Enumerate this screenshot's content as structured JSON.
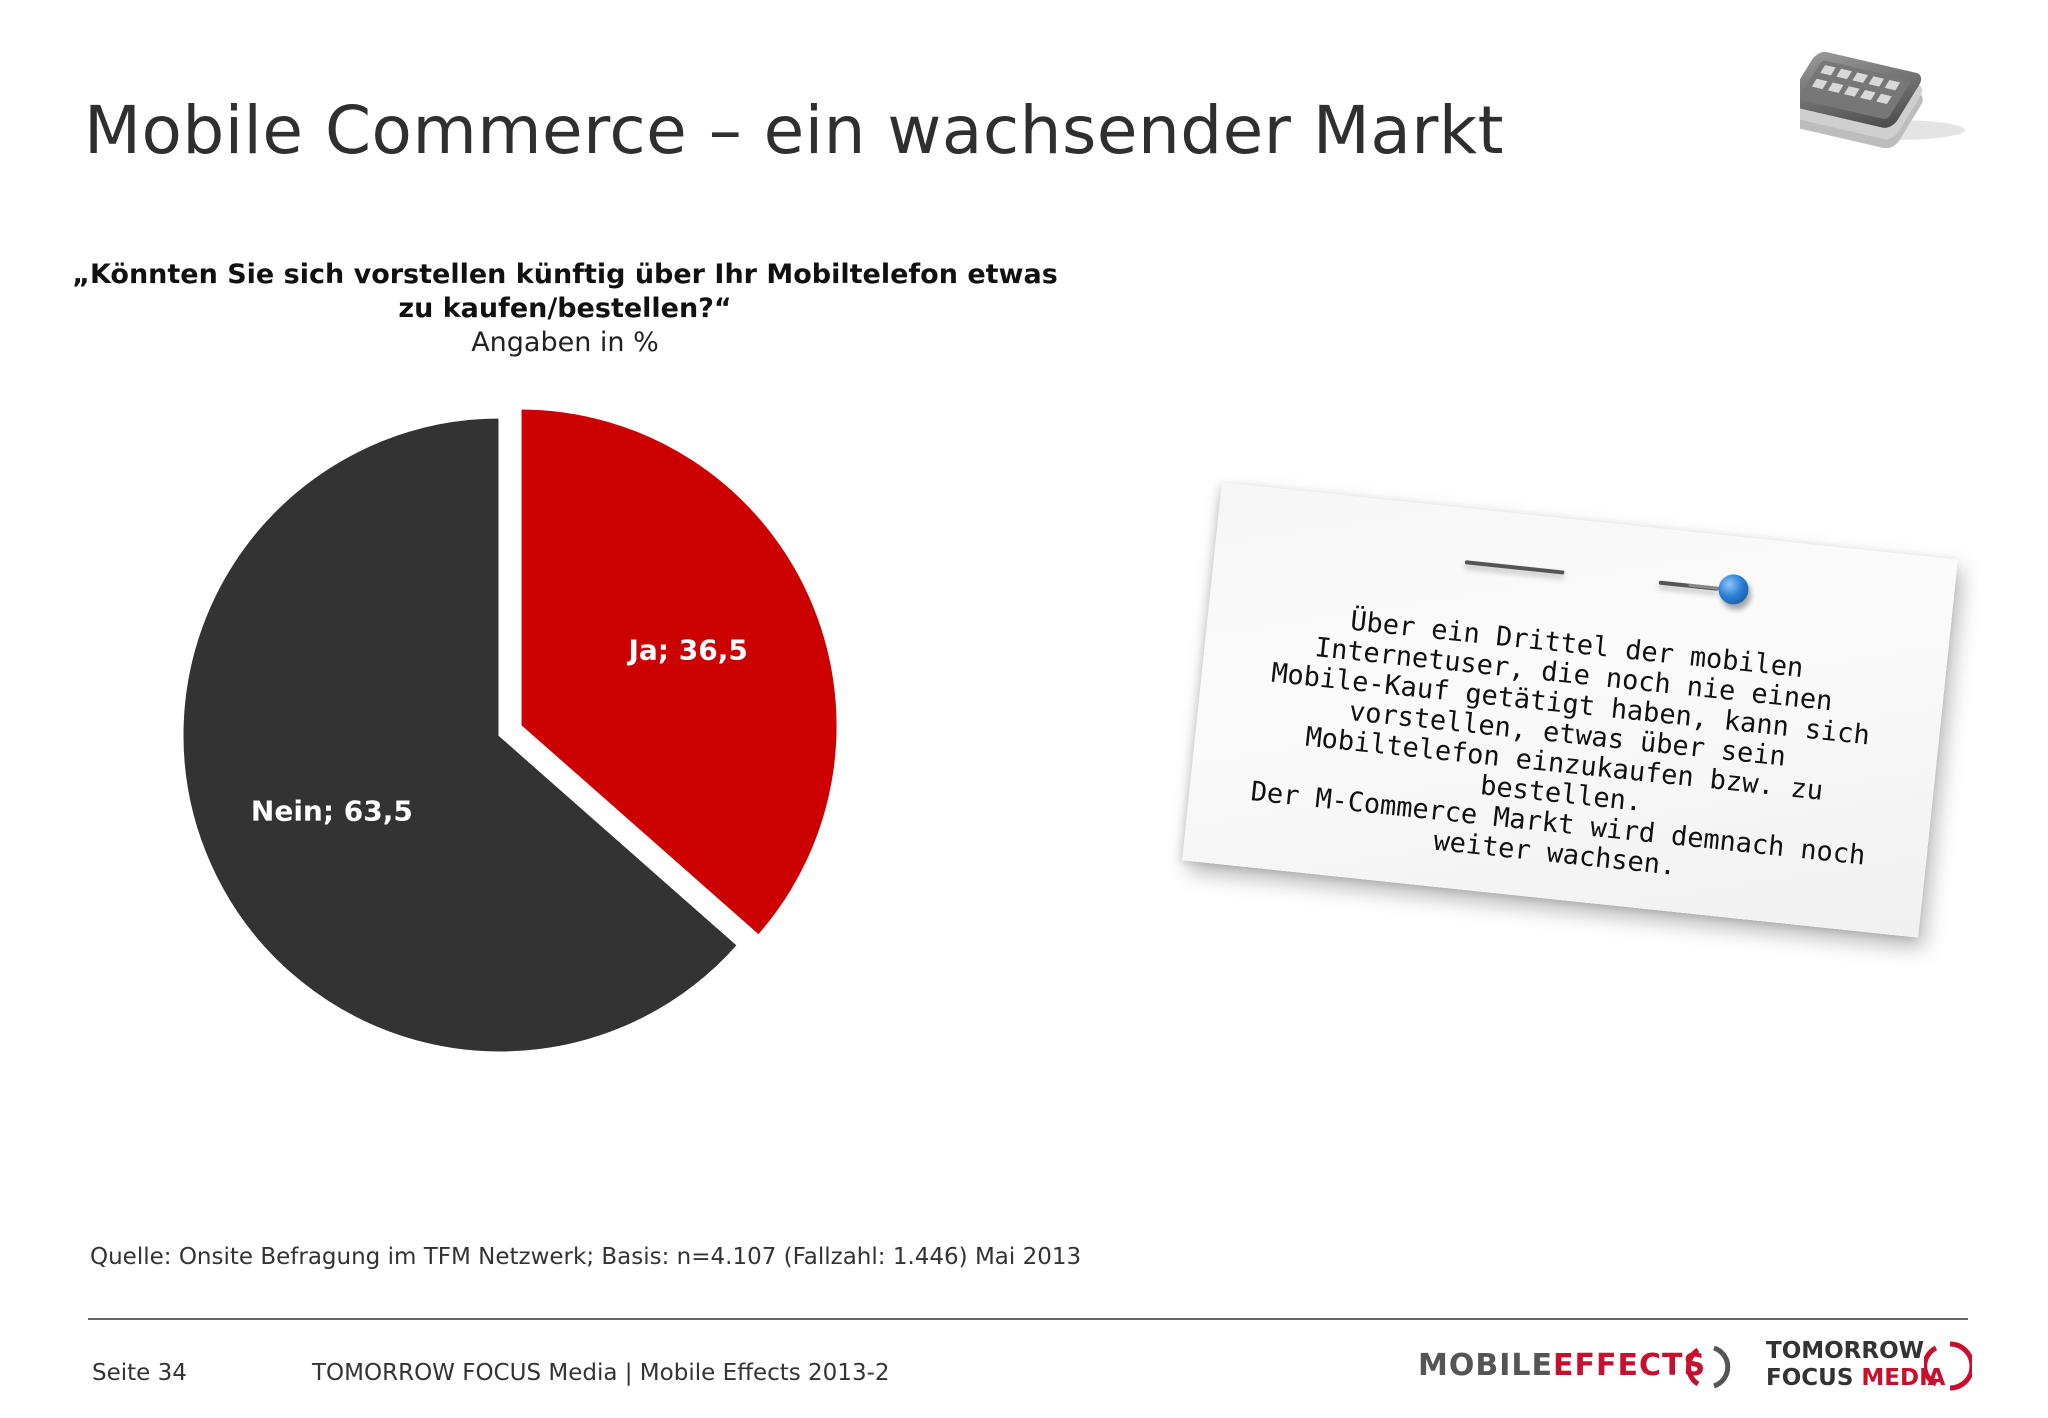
{
  "title": "Mobile Commerce – ein wachsender Markt",
  "chart_data": {
    "type": "pie",
    "title": "„Könnten Sie sich vorstellen künftig über Ihr Mobiltelefon etwas zu kaufen/bestellen?“",
    "subtitle": "Angaben in %",
    "question_line1": "„Könnten Sie sich vorstellen künftig über Ihr Mobiltelefon etwas",
    "question_line2": "zu kaufen/bestellen?“",
    "slices": [
      {
        "label": "Ja",
        "value": 36.5,
        "display": "Ja; 36,5",
        "color": "#cc0000",
        "exploded": true
      },
      {
        "label": "Nein",
        "value": 63.5,
        "display": "Nein; 63,5",
        "color": "#333333",
        "exploded": false
      }
    ]
  },
  "note": {
    "paragraph1": "Über ein Drittel der mobilen Internetuser, die noch nie einen Mobile-Kauf getätigt haben, kann sich vorstellen, etwas über sein Mobiltelefon einzukaufen bzw. zu bestellen.",
    "paragraph2": "Der M-Commerce Markt wird demnach noch weiter wachsen."
  },
  "source": "Quelle: Onsite Befragung im TFM Netzwerk; Basis: n=4.107 (Fallzahl: 1.446) Mai 2013",
  "footer": {
    "page": "Seite 34",
    "text": "TOMORROW FOCUS Media | Mobile Effects 2013-2"
  },
  "logos": {
    "mobile_effects_part1": "MOBILE",
    "mobile_effects_part2": "EFFECTS",
    "tfm_line1": "TOMORROW",
    "tfm_line2a": "FOCUS",
    "tfm_line2b": "MEDIA"
  },
  "icons": {
    "header": "smartphone-icon"
  },
  "colors": {
    "accent": "#cc0000",
    "dark": "#333333"
  }
}
